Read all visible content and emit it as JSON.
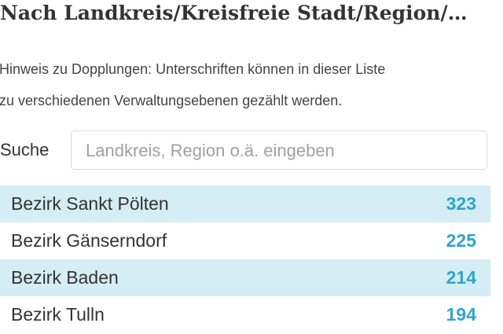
{
  "header": {
    "title": "Nach Landkreis/Kreisfreie Stadt/Region/…"
  },
  "hint": {
    "lines": [
      "Hinweis zu Dopplungen: Unterschriften können in dieser Liste",
      "zu verschiedenen Verwaltungsebenen gezählt werden."
    ]
  },
  "search": {
    "label": "Suche",
    "placeholder": "Landkreis, Region o.ä. eingeben"
  },
  "table": {
    "rows": [
      {
        "name": "Bezirk Sankt Pölten",
        "count": 323
      },
      {
        "name": "Bezirk Gänserndorf",
        "count": 225
      },
      {
        "name": "Bezirk Baden",
        "count": 214
      },
      {
        "name": "Bezirk Tulln",
        "count": 194
      }
    ]
  }
}
